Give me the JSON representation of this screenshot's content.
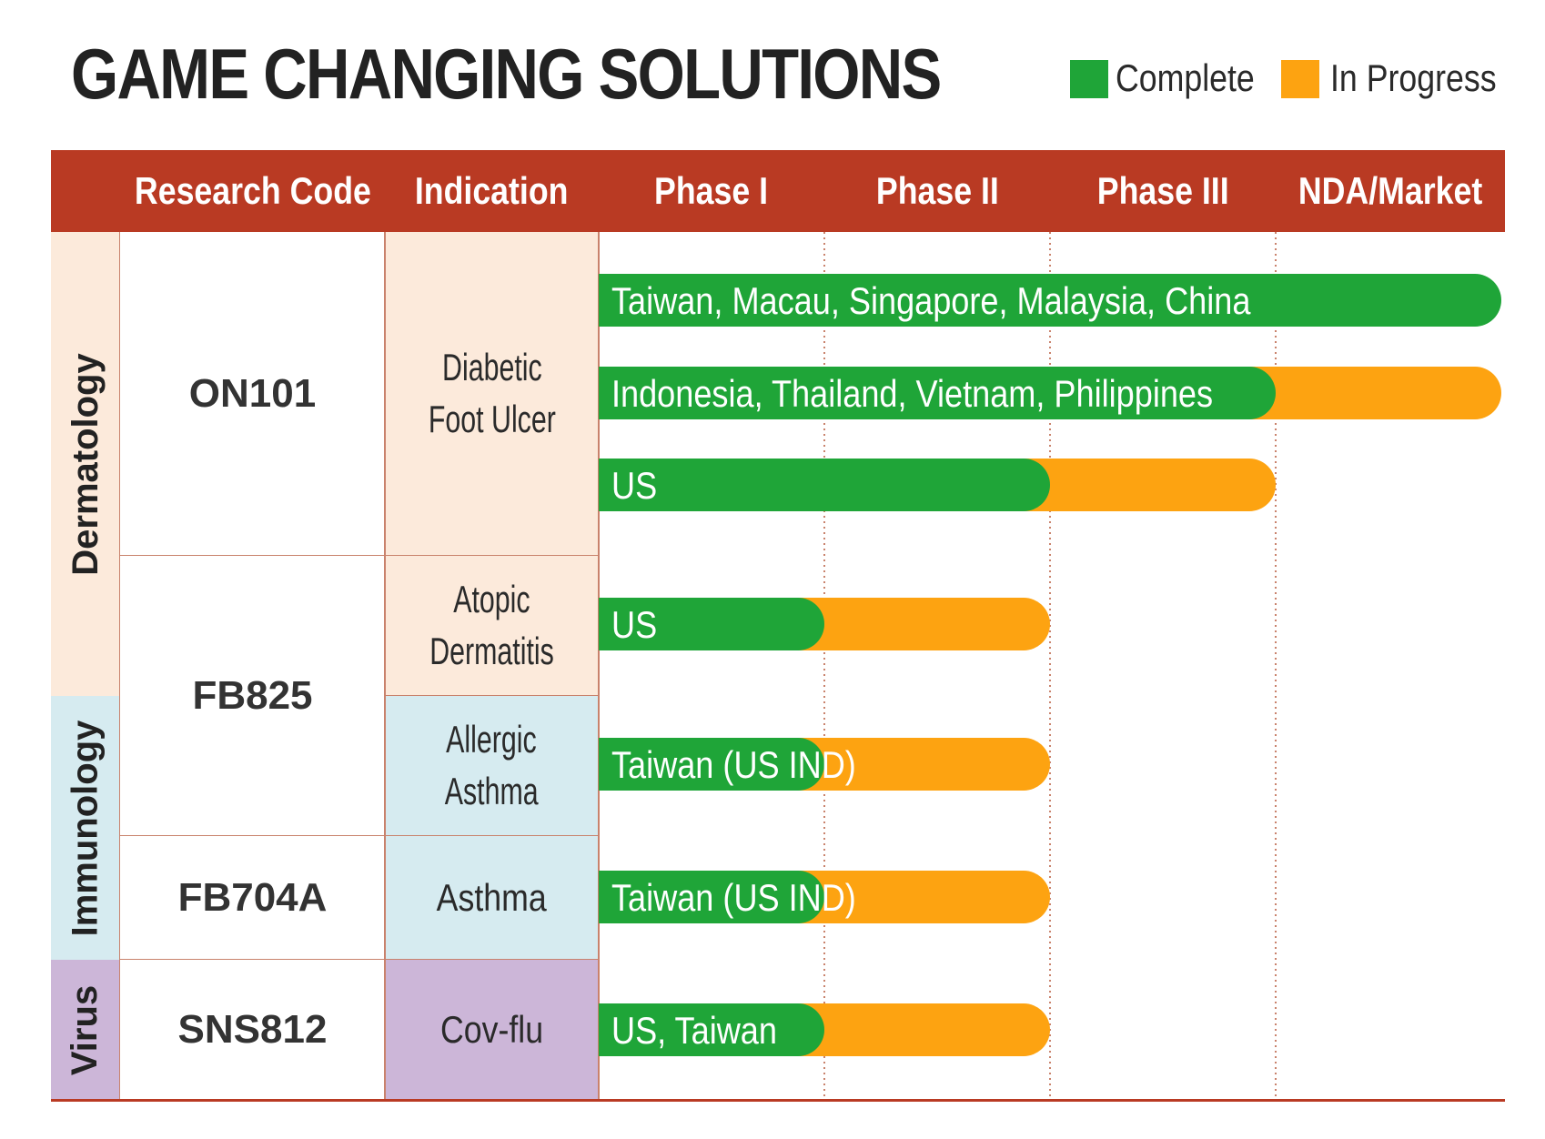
{
  "title": "GAME CHANGING SOLUTIONS",
  "legend": [
    {
      "label": "Complete",
      "color": "#1fa538"
    },
    {
      "label": "In Progress",
      "color": "#fda311"
    }
  ],
  "header": {
    "columns": [
      "Research Code",
      "Indication",
      "Phase I",
      "Phase II",
      "Phase III",
      "NDA/Market"
    ],
    "color": "#b93a23"
  },
  "categories": [
    {
      "label": "Dermatology",
      "color": "#fceadb"
    },
    {
      "label": "Immunology",
      "color": "#d6ebf0"
    },
    {
      "label": "Virus",
      "color": "#ccb6d8"
    }
  ],
  "research_codes": [
    "ON101",
    "FB825",
    "FB704A",
    "SNS812"
  ],
  "indications": [
    {
      "lines": [
        "Diabetic",
        "Foot Ulcer"
      ]
    },
    {
      "lines": [
        "Atopic",
        "Dermatitis"
      ]
    },
    {
      "lines": [
        "Allergic",
        "Asthma"
      ]
    },
    {
      "lines": [
        "Asthma"
      ]
    },
    {
      "lines": [
        "Cov-flu"
      ]
    }
  ],
  "chart_data": {
    "type": "bar",
    "orientation": "horizontal",
    "stacked": true,
    "x_categories": [
      "Phase I",
      "Phase II",
      "Phase III",
      "NDA/Market"
    ],
    "xlim": [
      0,
      4
    ],
    "bars": [
      {
        "code": "ON101",
        "indication": "Diabetic Foot Ulcer",
        "label": "Taiwan, Macau, Singapore, Malaysia, China",
        "complete": 4.0,
        "in_progress_end": 4.0
      },
      {
        "code": "ON101",
        "indication": "Diabetic Foot Ulcer",
        "label": "Indonesia, Thailand, Vietnam, Philippines",
        "complete": 3.0,
        "in_progress_end": 4.0
      },
      {
        "code": "ON101",
        "indication": "Diabetic Foot Ulcer",
        "label": "US",
        "complete": 2.0,
        "in_progress_end": 3.0
      },
      {
        "code": "FB825",
        "indication": "Atopic Dermatitis",
        "label": "US",
        "complete": 1.0,
        "in_progress_end": 2.0
      },
      {
        "code": "FB825",
        "indication": "Allergic Asthma",
        "label": "Taiwan (US IND)",
        "complete": 1.0,
        "in_progress_end": 2.0
      },
      {
        "code": "FB704A",
        "indication": "Asthma",
        "label": "Taiwan (US IND)",
        "complete": 1.0,
        "in_progress_end": 2.0
      },
      {
        "code": "SNS812",
        "indication": "Cov-flu",
        "label": "US, Taiwan",
        "complete": 1.0,
        "in_progress_end": 2.0
      }
    ]
  }
}
